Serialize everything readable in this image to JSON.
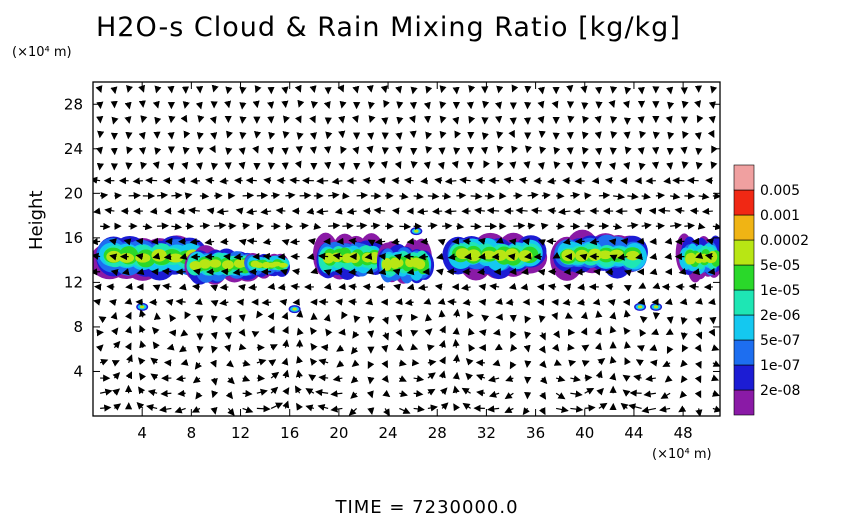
{
  "title": "H2O-s Cloud & Rain Mixing Ratio [kg/kg]",
  "y_unit": "(×10⁴ m)",
  "x_unit": "(×10⁴ m)",
  "y_axis_label": "Height",
  "time_label": "TIME = 7230000.0",
  "chart_data": {
    "type": "heatmap",
    "title": "H2O-s Cloud & Rain Mixing Ratio [kg/kg]",
    "xlabel": "",
    "ylabel": "Height",
    "xlim": [
      0,
      51
    ],
    "ylim": [
      0,
      30
    ],
    "x_ticks": [
      4,
      8,
      12,
      16,
      20,
      24,
      28,
      32,
      36,
      40,
      44,
      48
    ],
    "y_ticks": [
      4,
      8,
      12,
      16,
      20,
      24,
      28
    ],
    "grid": false,
    "colorbar": {
      "levels": [
        "2e-08",
        "1e-07",
        "5e-07",
        "2e-06",
        "1e-05",
        "5e-05",
        "0.0002",
        "0.001",
        "0.005"
      ],
      "colors": [
        "#8a1aa6",
        "#1c1cd4",
        "#1d6ef0",
        "#14c8f0",
        "#1ee6b4",
        "#2ad82a",
        "#b8e614",
        "#f0b414",
        "#f02814",
        "#f0a0a0"
      ]
    },
    "cloud_bands": [
      {
        "x": [
          0,
          9.5
        ],
        "y": [
          12.4,
          16.2
        ]
      },
      {
        "x": [
          7.5,
          13.5
        ],
        "y": [
          12.0,
          15.2
        ]
      },
      {
        "x": [
          12.5,
          15.8
        ],
        "y": [
          12.6,
          14.6
        ]
      },
      {
        "x": [
          18.2,
          23.8
        ],
        "y": [
          12.4,
          16.1
        ]
      },
      {
        "x": [
          23.2,
          27.5
        ],
        "y": [
          11.8,
          15.6
        ]
      },
      {
        "x": [
          28.5,
          36.8
        ],
        "y": [
          12.6,
          16.4
        ]
      },
      {
        "x": [
          37.2,
          45.2
        ],
        "y": [
          12.6,
          16.3
        ]
      },
      {
        "x": [
          47.8,
          51
        ],
        "y": [
          12.4,
          16.0
        ]
      }
    ],
    "small_cells": [
      {
        "x": 4.0,
        "y": 9.8
      },
      {
        "x": 16.4,
        "y": 9.6
      },
      {
        "x": 44.5,
        "y": 9.8
      },
      {
        "x": 45.8,
        "y": 9.8
      },
      {
        "x": 26.3,
        "y": 16.6
      }
    ],
    "wind_vectors": "velocity field arrows over domain"
  }
}
